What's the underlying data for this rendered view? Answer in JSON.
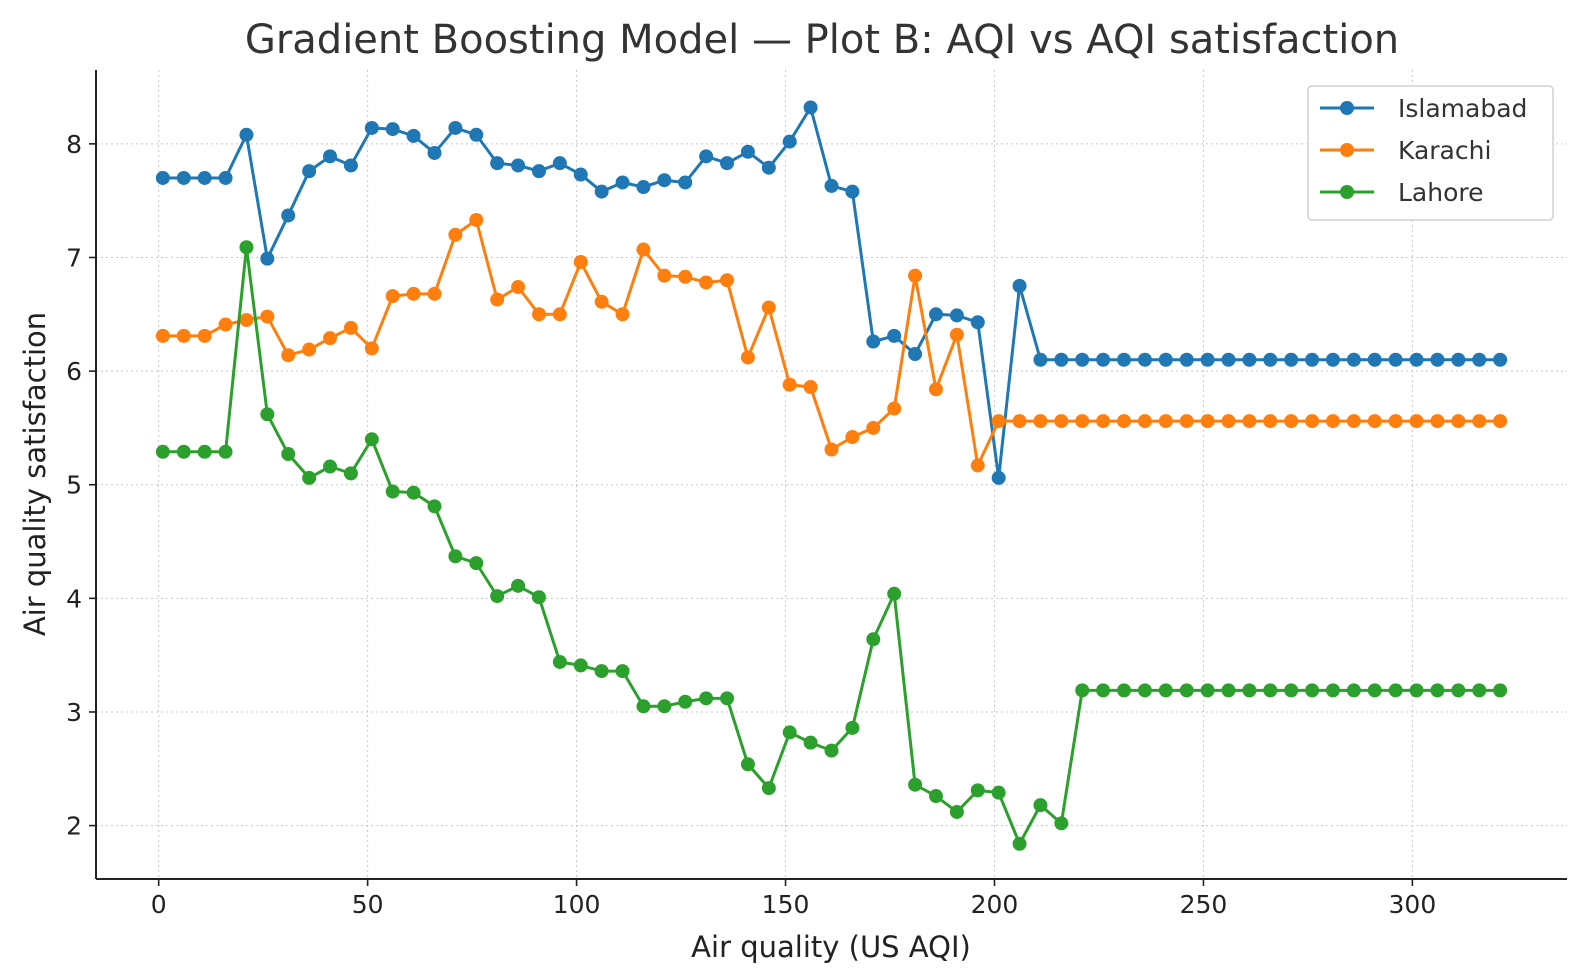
{
  "chart_data": {
    "type": "line",
    "title": "Gradient Boosting Model — Plot B: AQI vs AQI satisfaction",
    "xlabel": "Air quality (US AQI)",
    "ylabel": "Air quality satisfaction",
    "xlim": [
      -15,
      337
    ],
    "ylim": [
      1.53,
      8.65
    ],
    "x_ticks": [
      0,
      50,
      100,
      150,
      200,
      250,
      300
    ],
    "y_ticks": [
      2,
      3,
      4,
      5,
      6,
      7,
      8
    ],
    "grid": true,
    "legend_position": "top-right",
    "x": [
      1,
      6,
      11,
      16,
      21,
      26,
      31,
      36,
      41,
      46,
      51,
      56,
      61,
      66,
      71,
      76,
      81,
      86,
      91,
      96,
      101,
      106,
      111,
      116,
      121,
      126,
      131,
      136,
      141,
      146,
      151,
      156,
      161,
      166,
      171,
      176,
      181,
      186,
      191,
      196,
      201,
      206,
      211,
      216,
      221,
      226,
      231,
      236,
      241,
      246,
      251,
      256,
      261,
      266,
      271,
      276,
      281,
      286,
      291,
      296,
      301,
      306,
      311,
      316,
      321
    ],
    "series": [
      {
        "name": "Islamabad",
        "color": "#1f77b4",
        "values": [
          7.7,
          7.7,
          7.7,
          7.7,
          8.08,
          6.99,
          7.37,
          7.76,
          7.89,
          7.81,
          8.14,
          8.13,
          8.07,
          7.92,
          8.14,
          8.08,
          7.83,
          7.81,
          7.76,
          7.83,
          7.73,
          7.58,
          7.66,
          7.62,
          7.68,
          7.66,
          7.89,
          7.83,
          7.93,
          7.79,
          8.02,
          8.32,
          7.63,
          7.58,
          6.26,
          6.31,
          6.15,
          6.5,
          6.49,
          6.43,
          5.06,
          6.75,
          6.1,
          6.1,
          6.1,
          6.1,
          6.1,
          6.1,
          6.1,
          6.1,
          6.1,
          6.1,
          6.1,
          6.1,
          6.1,
          6.1,
          6.1,
          6.1,
          6.1,
          6.1,
          6.1,
          6.1,
          6.1,
          6.1,
          6.1
        ]
      },
      {
        "name": "Karachi",
        "color": "#ff7f0e",
        "values": [
          6.31,
          6.31,
          6.31,
          6.41,
          6.45,
          6.48,
          6.14,
          6.19,
          6.29,
          6.38,
          6.2,
          6.66,
          6.68,
          6.68,
          7.2,
          7.33,
          6.63,
          6.74,
          6.5,
          6.5,
          6.96,
          6.61,
          6.5,
          7.07,
          6.84,
          6.83,
          6.78,
          6.8,
          6.12,
          6.56,
          5.88,
          5.86,
          5.31,
          5.42,
          5.5,
          5.67,
          6.84,
          5.84,
          6.32,
          5.17,
          5.56,
          5.56,
          5.56,
          5.56,
          5.56,
          5.56,
          5.56,
          5.56,
          5.56,
          5.56,
          5.56,
          5.56,
          5.56,
          5.56,
          5.56,
          5.56,
          5.56,
          5.56,
          5.56,
          5.56,
          5.56,
          5.56,
          5.56,
          5.56,
          5.56
        ]
      },
      {
        "name": "Lahore",
        "color": "#2ca02c",
        "values": [
          5.29,
          5.29,
          5.29,
          5.29,
          7.09,
          5.62,
          5.27,
          5.06,
          5.16,
          5.1,
          5.4,
          4.94,
          4.93,
          4.81,
          4.37,
          4.31,
          4.02,
          4.11,
          4.01,
          3.44,
          3.41,
          3.36,
          3.36,
          3.05,
          3.05,
          3.09,
          3.12,
          3.12,
          2.54,
          2.33,
          2.82,
          2.73,
          2.66,
          2.86,
          3.64,
          4.04,
          2.36,
          2.26,
          2.12,
          2.31,
          2.29,
          1.84,
          2.18,
          2.02,
          3.19,
          3.19,
          3.19,
          3.19,
          3.19,
          3.19,
          3.19,
          3.19,
          3.19,
          3.19,
          3.19,
          3.19,
          3.19,
          3.19,
          3.19,
          3.19,
          3.19,
          3.19,
          3.19,
          3.19,
          3.19
        ]
      }
    ]
  }
}
